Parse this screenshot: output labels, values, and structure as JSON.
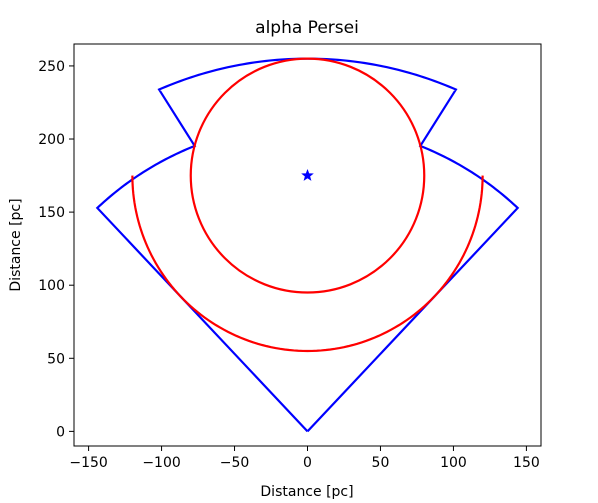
{
  "chart_data": {
    "type": "line",
    "title": "alpha Persei",
    "xlabel": "Distance [pc]",
    "ylabel": "Distance [pc]",
    "xlim": [
      -160,
      160
    ],
    "ylim": [
      -10,
      265
    ],
    "xticks": [
      -150,
      -100,
      -50,
      0,
      50,
      100,
      150
    ],
    "xtick_labels": [
      "−150",
      "−100",
      "−50",
      "0",
      "50",
      "100",
      "150"
    ],
    "yticks": [
      0,
      50,
      100,
      150,
      200,
      250
    ],
    "ytick_labels": [
      "0",
      "50",
      "100",
      "150",
      "200",
      "250"
    ],
    "grid": false,
    "series": [
      {
        "color": "#0000ff",
        "shape": "bounded volume outline",
        "inner_radius_pc": 210,
        "outer_radius_pc": 255,
        "half_angle_deg": 43.3,
        "notch_start_deg": 21.6,
        "notch_inner_deg": 23.5,
        "notch_outer_deg": 21.4,
        "points_summary": {
          "apex": [
            0,
            0
          ],
          "left_corner": [
            -145,
            154
          ],
          "right_corner": [
            145,
            154
          ],
          "notch_left_top": [
            -93,
            237
          ],
          "notch_left_bottom": [
            -77,
            198
          ],
          "notch_right_top": [
            93,
            237
          ],
          "notch_right_bottom": [
            77,
            198
          ],
          "top": [
            0,
            255
          ]
        }
      },
      {
        "color": "#ff0000",
        "shape": "circle",
        "center": [
          0,
          175
        ],
        "radius": 80
      },
      {
        "color": "#ff0000",
        "shape": "arc",
        "center": [
          0,
          175
        ],
        "radius": 120,
        "from_deg": 180,
        "to_deg": 360
      },
      {
        "color": "#0000ff",
        "shape": "star marker",
        "point": [
          0,
          175
        ]
      }
    ]
  }
}
